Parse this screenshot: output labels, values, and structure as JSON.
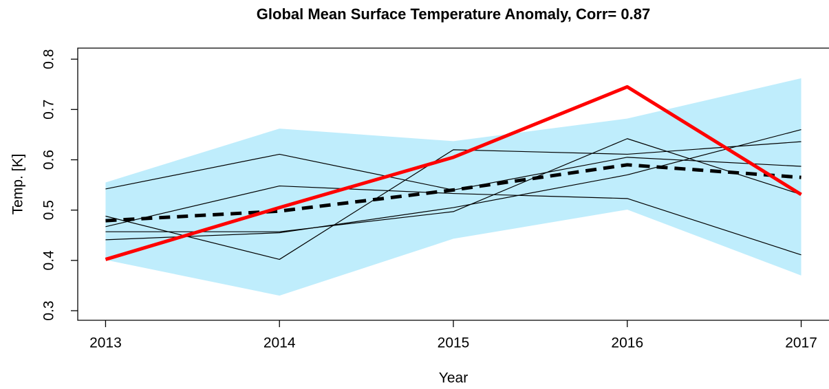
{
  "chart_data": {
    "type": "line",
    "title": "Global Mean Surface Temperature Anomaly, Corr= 0.87",
    "x_label": "Year",
    "y_label": "Temp. [K]",
    "x": [
      2013,
      2014,
      2015,
      2016,
      2017
    ],
    "xlim": [
      2012.84,
      2017.16
    ],
    "xticks": [
      2013,
      2014,
      2015,
      2016,
      2017
    ],
    "ylim": [
      0.281,
      0.822
    ],
    "yticks": [
      0.3,
      0.4,
      0.5,
      0.6,
      0.7,
      0.8
    ],
    "band": {
      "color": "#bfedfc",
      "upper": [
        0.555,
        0.662,
        0.637,
        0.682,
        0.762
      ],
      "lower": [
        0.401,
        0.33,
        0.443,
        0.501,
        0.37
      ]
    },
    "series": [
      {
        "color": "#000000",
        "width": 1.2,
        "dash": false,
        "values": [
          0.542,
          0.611,
          0.54,
          0.605,
          0.587
        ]
      },
      {
        "color": "#000000",
        "width": 1.2,
        "dash": false,
        "values": [
          0.467,
          0.548,
          0.533,
          0.523,
          0.411
        ]
      },
      {
        "color": "#000000",
        "width": 1.2,
        "dash": false,
        "values": [
          0.488,
          0.402,
          0.62,
          0.611,
          0.636
        ]
      },
      {
        "color": "#000000",
        "width": 1.2,
        "dash": false,
        "values": [
          0.457,
          0.457,
          0.497,
          0.642,
          0.531
        ]
      },
      {
        "color": "#000000",
        "width": 1.2,
        "dash": false,
        "values": [
          0.441,
          0.455,
          0.505,
          0.57,
          0.66
        ]
      },
      {
        "color": "#000000",
        "width": 5,
        "dash": true,
        "values": [
          0.479,
          0.498,
          0.54,
          0.59,
          0.565
        ]
      },
      {
        "color": "#ff0000",
        "width": 5,
        "dash": false,
        "values": [
          0.402,
          0.505,
          0.605,
          0.745,
          0.531
        ]
      }
    ]
  }
}
